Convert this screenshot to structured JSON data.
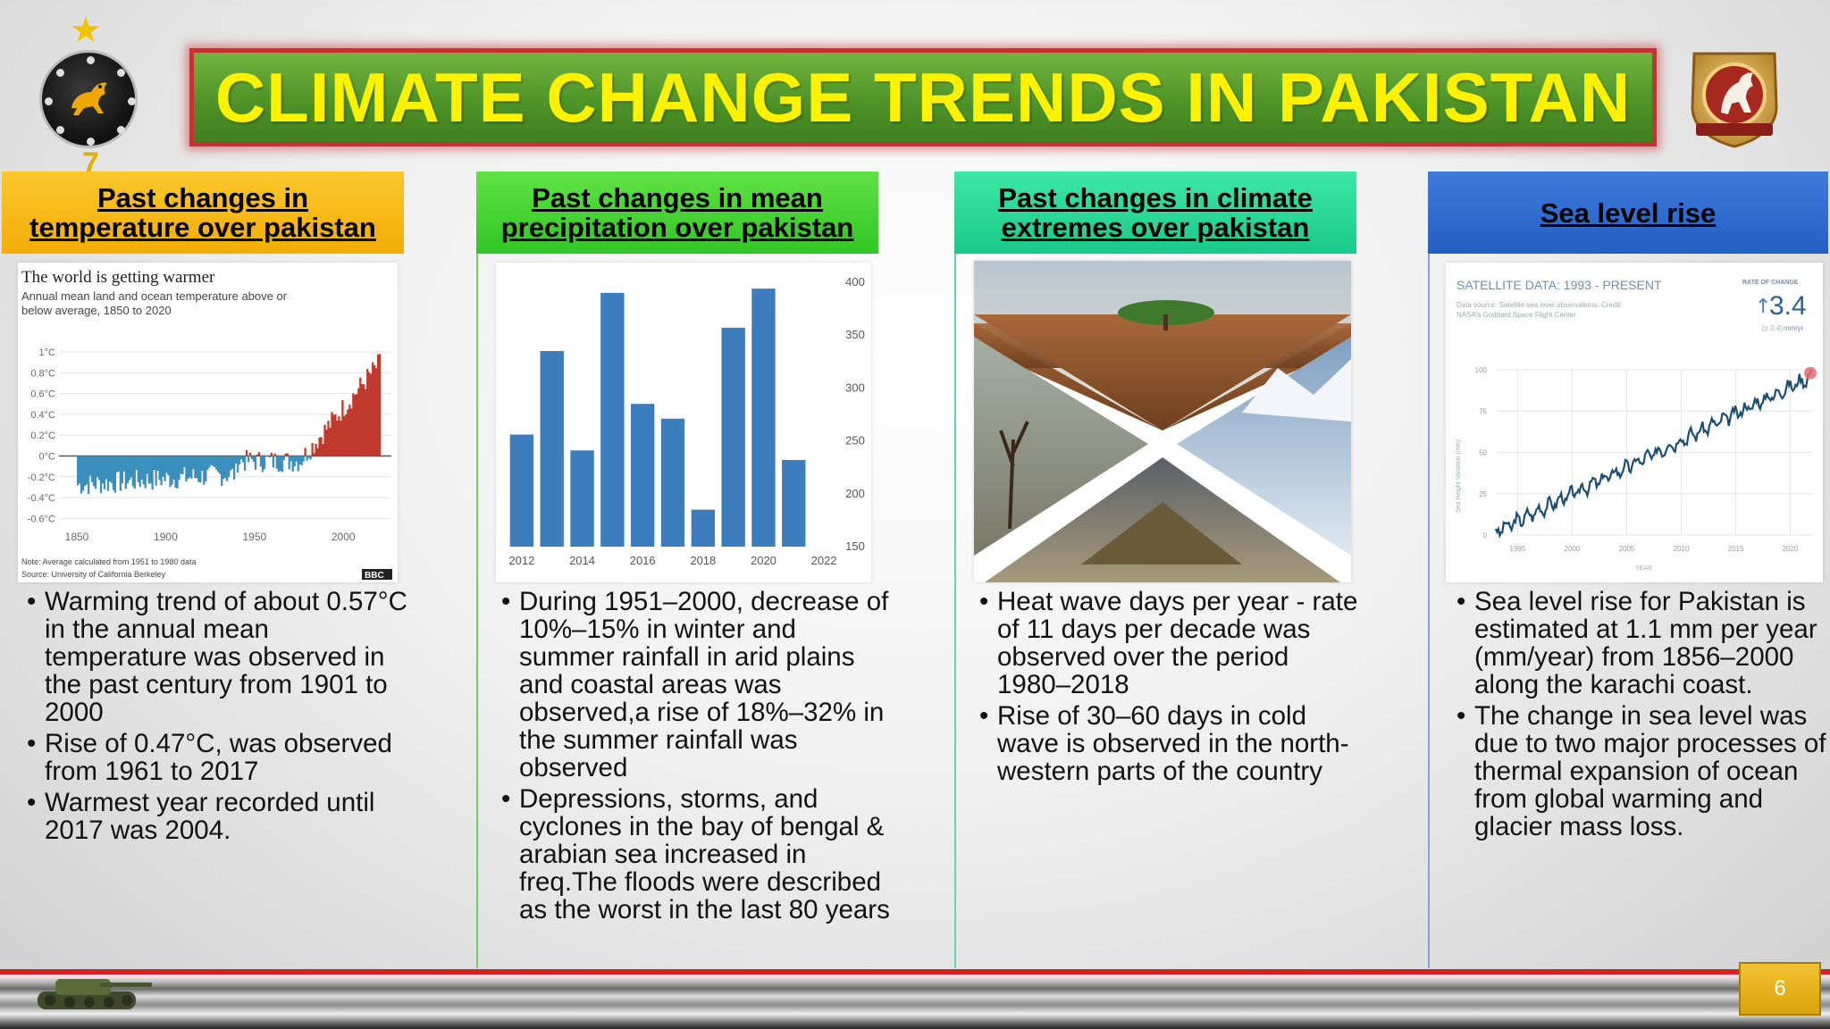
{
  "slide": {
    "title": "CLIMATE CHANGE TRENDS IN PAKISTAN",
    "page_number": "6",
    "emblem_left_number": "7"
  },
  "columns": [
    {
      "header_line1": "Past changes in",
      "header_line2": "temperature over pakistan",
      "accent": "#f5b111",
      "bullets": [
        "Warming trend of about 0.57°C in the annual mean temperature was observed in the past century from 1901 to 2000",
        "Rise of 0.47°C, was observed from 1961 to 2017",
        "Warmest year recorded until 2017 was 2004."
      ]
    },
    {
      "header_line1": "Past changes in mean",
      "header_line2": "precipitation over pakistan",
      "accent": "#3fcf2f",
      "bullets": [
        "During 1951–2000, decrease of 10%–15% in winter and summer rainfall in arid plains and coastal areas was observed,a rise of 18%–32% in the summer rainfall was observed",
        "Depressions, storms, and cyclones in the bay of bengal & arabian sea increased in freq.The floods were described as the worst in the last 80 years"
      ]
    },
    {
      "header_line1": "Past changes in climate",
      "header_line2": "extremes over pakistan",
      "accent": "#21d190",
      "bullets": [
        "Heat wave days per year - rate of 11 days per decade was observed over the period 1980–2018",
        "Rise of 30–60 days in cold wave is observed in the north-western parts of the country"
      ]
    },
    {
      "header_line1": "Sea level rise",
      "accent": "#2e6bd1",
      "bullets": [
        "Sea level rise for Pakistan is estimated at 1.1 mm per year (mm/year) from 1856–2000 along the karachi coast.",
        " The change in sea level was due to two major processes of thermal expansion of ocean from global warming and glacier mass loss."
      ]
    }
  ],
  "temp_chart": {
    "title": "The world is getting warmer",
    "subtitle_line1": "Annual mean land and ocean temperature above or",
    "subtitle_line2": "below average, 1850 to 2020",
    "y_ticks": [
      "1°C",
      "0.8°C",
      "0.6°C",
      "0.4°C",
      "0.2°C",
      "0°C",
      "-0.2°C",
      "-0.4°C",
      "-0.6°C"
    ],
    "x_ticks": [
      "1850",
      "1900",
      "1950",
      "2000"
    ],
    "note": "Note: Average calculated from 1951 to 1980 data",
    "source": "Source: University of California Berkeley",
    "logo": "BBC",
    "colors": {
      "warm": "#c0392b",
      "cool": "#3a8fbf"
    }
  },
  "precip_chart": {
    "type": "bar",
    "categories": [
      "2012",
      "2013",
      "2014",
      "2015",
      "2016",
      "2017",
      "2018",
      "2019",
      "2020",
      "2021"
    ],
    "values": [
      256,
      335,
      241,
      390,
      285,
      271,
      185,
      357,
      394,
      232
    ],
    "x_tick_labels": [
      "2012",
      "2014",
      "2016",
      "2018",
      "2020",
      "2022"
    ],
    "y_ticks": [
      "400",
      "350",
      "300",
      "250",
      "200",
      "150"
    ],
    "ylim": [
      150,
      400
    ],
    "bar_color": "#3b7dbd"
  },
  "sea_chart": {
    "title": "SATELLITE DATA: 1993 - PRESENT",
    "source_line1": "Data source: Satellite sea level observations. Credit:",
    "source_line2": "NASA's Goddard Space Flight Center",
    "rate_label": "RATE OF CHANGE",
    "rate_value": "3.4",
    "rate_unit": "mm/yr",
    "rate_range": "(± 0.4)",
    "y_ticks": [
      "100",
      "75",
      "50",
      "25",
      "0"
    ],
    "x_ticks": [
      "1995",
      "2000",
      "2005",
      "2010",
      "2015",
      "2020"
    ],
    "ylabel": "Sea Height Variation (mm)",
    "xlabel": "YEAR",
    "line_color": "#1b4f72"
  }
}
